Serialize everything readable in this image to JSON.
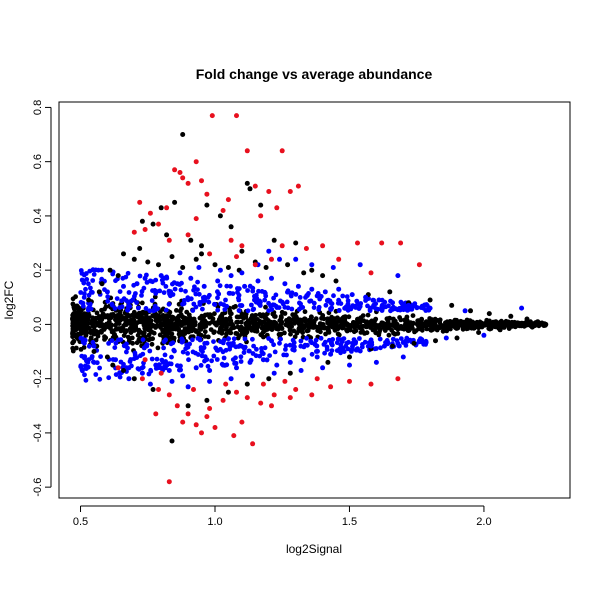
{
  "chart_data": {
    "type": "scatter",
    "title": "Fold change vs average abundance",
    "xlabel": "log2Signal",
    "ylabel": "log2FC",
    "xlim": [
      0.42,
      2.32
    ],
    "ylim": [
      -0.64,
      0.82
    ],
    "xticks": [
      0.5,
      1.0,
      1.5,
      2.0
    ],
    "xtick_labels": [
      "0.5",
      "1.0",
      "1.5",
      "2.0"
    ],
    "yticks": [
      -0.6,
      -0.4,
      -0.2,
      0.0,
      0.2,
      0.4,
      0.6,
      0.8
    ],
    "ytick_labels": [
      "-0.6",
      "-0.4",
      "-0.2",
      "0.0",
      "0.2",
      "0.4",
      "0.6",
      "0.8"
    ],
    "grid": false,
    "legend": "none",
    "colors": {
      "black": "#000000",
      "blue": "#0000ff",
      "red": "#e8101e"
    },
    "series": [
      {
        "color": "#000000",
        "points": [
          [
            0.88,
            0.7
          ],
          [
            0.8,
            0.43
          ],
          [
            0.85,
            0.45
          ],
          [
            0.97,
            0.44
          ],
          [
            1.02,
            0.4
          ],
          [
            1.12,
            0.52
          ],
          [
            1.13,
            0.5
          ],
          [
            1.17,
            0.44
          ],
          [
            0.73,
            0.38
          ],
          [
            0.77,
            0.37
          ],
          [
            0.82,
            0.33
          ],
          [
            0.91,
            0.31
          ],
          [
            0.95,
            0.29
          ],
          [
            1.06,
            0.36
          ],
          [
            1.22,
            0.31
          ],
          [
            1.3,
            0.3
          ],
          [
            0.66,
            0.26
          ],
          [
            0.7,
            0.24
          ],
          [
            0.75,
            0.23
          ],
          [
            0.79,
            0.22
          ],
          [
            0.84,
            0.25
          ],
          [
            0.88,
            0.21
          ],
          [
            0.93,
            0.24
          ],
          [
            1.0,
            0.22
          ],
          [
            1.05,
            0.21
          ],
          [
            1.09,
            0.2
          ],
          [
            1.15,
            0.23
          ],
          [
            1.19,
            0.21
          ],
          [
            1.27,
            0.22
          ],
          [
            1.36,
            0.2
          ],
          [
            0.61,
            0.2
          ],
          [
            0.64,
            0.18
          ],
          [
            1.57,
            0.11
          ],
          [
            1.65,
            0.12
          ],
          [
            1.72,
            0.08
          ],
          [
            1.8,
            0.09
          ],
          [
            1.88,
            0.07
          ],
          [
            1.95,
            0.05
          ],
          [
            2.02,
            0.04
          ],
          [
            2.1,
            0.03
          ],
          [
            2.16,
            0.02
          ],
          [
            2.2,
            0.01
          ],
          [
            2.23,
            0.0
          ],
          [
            2.18,
            -0.01
          ],
          [
            2.06,
            -0.02
          ],
          [
            1.98,
            -0.03
          ],
          [
            1.9,
            -0.05
          ],
          [
            1.82,
            -0.06
          ],
          [
            1.74,
            -0.07
          ],
          [
            1.66,
            -0.08
          ],
          [
            1.58,
            -0.09
          ],
          [
            0.84,
            -0.43
          ],
          [
            0.9,
            -0.3
          ],
          [
            0.97,
            -0.28
          ],
          [
            1.05,
            -0.25
          ],
          [
            0.77,
            -0.24
          ],
          [
            0.7,
            -0.2
          ],
          [
            0.66,
            -0.17
          ],
          [
            0.6,
            -0.12
          ],
          [
            0.56,
            -0.08
          ],
          [
            0.52,
            -0.04
          ],
          [
            0.49,
            0.0
          ],
          [
            0.5,
            0.05
          ],
          [
            0.53,
            0.09
          ],
          [
            0.57,
            0.12
          ],
          [
            0.48,
            -0.02
          ],
          [
            0.55,
            -0.1
          ],
          [
            0.62,
            -0.15
          ],
          [
            1.12,
            -0.22
          ],
          [
            1.2,
            -0.2
          ],
          [
            1.28,
            -0.18
          ],
          [
            1.42,
            -0.14
          ],
          [
            1.5,
            -0.12
          ],
          [
            1.45,
            0.16
          ],
          [
            1.4,
            0.18
          ],
          [
            1.33,
            0.19
          ],
          [
            0.72,
            0.28
          ],
          [
            0.95,
            0.26
          ],
          [
            1.1,
            0.27
          ],
          [
            0.58,
            0.15
          ]
        ]
      },
      {
        "color": "#0000ff",
        "points": [
          [
            0.53,
            0.06
          ],
          [
            0.55,
            -0.08
          ],
          [
            0.6,
            0.12
          ],
          [
            0.63,
            -0.13
          ],
          [
            0.66,
            0.14
          ],
          [
            0.68,
            -0.16
          ],
          [
            0.71,
            0.15
          ],
          [
            0.73,
            -0.18
          ],
          [
            0.76,
            0.16
          ],
          [
            0.78,
            -0.15
          ],
          [
            0.81,
            0.17
          ],
          [
            0.83,
            -0.17
          ],
          [
            0.86,
            0.15
          ],
          [
            0.88,
            -0.19
          ],
          [
            0.91,
            0.17
          ],
          [
            0.93,
            -0.16
          ],
          [
            0.96,
            0.14
          ],
          [
            0.98,
            -0.17
          ],
          [
            1.01,
            0.16
          ],
          [
            1.03,
            -0.15
          ],
          [
            1.06,
            0.18
          ],
          [
            1.08,
            -0.16
          ],
          [
            1.11,
            0.14
          ],
          [
            1.13,
            -0.14
          ],
          [
            1.16,
            0.16
          ],
          [
            1.18,
            -0.13
          ],
          [
            1.21,
            0.17
          ],
          [
            1.23,
            -0.15
          ],
          [
            1.26,
            0.15
          ],
          [
            1.28,
            -0.14
          ],
          [
            1.31,
            0.14
          ],
          [
            1.33,
            -0.13
          ],
          [
            1.36,
            0.13
          ],
          [
            1.38,
            -0.12
          ],
          [
            1.41,
            0.12
          ],
          [
            1.43,
            -0.11
          ],
          [
            1.46,
            0.13
          ],
          [
            1.48,
            -0.1
          ],
          [
            1.51,
            0.11
          ],
          [
            1.53,
            -0.09
          ],
          [
            1.56,
            0.1
          ],
          [
            1.58,
            -0.08
          ],
          [
            1.61,
            0.09
          ],
          [
            1.63,
            -0.08
          ],
          [
            1.66,
            0.08
          ],
          [
            1.68,
            -0.07
          ],
          [
            1.72,
            0.07
          ],
          [
            1.76,
            -0.06
          ],
          [
            1.8,
            0.06
          ],
          [
            1.86,
            -0.05
          ],
          [
            1.93,
            0.05
          ],
          [
            2.0,
            -0.04
          ],
          [
            2.14,
            0.06
          ],
          [
            1.54,
            0.22
          ],
          [
            1.44,
            0.21
          ],
          [
            1.68,
            0.18
          ],
          [
            1.36,
            0.22
          ],
          [
            1.3,
            0.24
          ],
          [
            1.2,
            0.27
          ],
          [
            1.24,
            0.24
          ],
          [
            1.16,
            0.22
          ],
          [
            1.1,
            0.19
          ],
          [
            1.02,
            0.2
          ],
          [
            0.94,
            0.21
          ],
          [
            0.87,
            0.19
          ],
          [
            0.8,
            0.18
          ],
          [
            0.74,
            0.17
          ],
          [
            0.68,
            -0.2
          ],
          [
            0.76,
            -0.22
          ],
          [
            0.84,
            -0.21
          ],
          [
            0.9,
            -0.23
          ],
          [
            0.98,
            -0.21
          ],
          [
            1.06,
            -0.2
          ],
          [
            1.14,
            -0.19
          ],
          [
            1.22,
            -0.18
          ],
          [
            1.32,
            -0.17
          ],
          [
            1.4,
            -0.16
          ],
          [
            1.5,
            -0.15
          ],
          [
            1.6,
            -0.14
          ],
          [
            1.7,
            -0.12
          ]
        ]
      },
      {
        "color": "#e8101e",
        "points": [
          [
            0.99,
            0.77
          ],
          [
            1.08,
            0.77
          ],
          [
            1.12,
            0.64
          ],
          [
            1.25,
            0.64
          ],
          [
            0.93,
            0.6
          ],
          [
            0.85,
            0.57
          ],
          [
            0.87,
            0.56
          ],
          [
            0.88,
            0.54
          ],
          [
            0.9,
            0.52
          ],
          [
            0.95,
            0.53
          ],
          [
            1.15,
            0.51
          ],
          [
            1.2,
            0.49
          ],
          [
            1.31,
            0.51
          ],
          [
            1.28,
            0.49
          ],
          [
            0.97,
            0.48
          ],
          [
            1.05,
            0.46
          ],
          [
            0.82,
            0.43
          ],
          [
            0.76,
            0.41
          ],
          [
            0.72,
            0.45
          ],
          [
            1.03,
            0.42
          ],
          [
            1.23,
            0.43
          ],
          [
            1.17,
            0.4
          ],
          [
            0.93,
            0.39
          ],
          [
            0.79,
            0.37
          ],
          [
            0.74,
            0.35
          ],
          [
            0.9,
            0.33
          ],
          [
            1.06,
            0.31
          ],
          [
            1.1,
            0.29
          ],
          [
            1.25,
            0.29
          ],
          [
            1.34,
            0.28
          ],
          [
            1.4,
            0.29
          ],
          [
            1.46,
            0.24
          ],
          [
            1.53,
            0.3
          ],
          [
            1.62,
            0.3
          ],
          [
            1.69,
            0.3
          ],
          [
            1.76,
            0.22
          ],
          [
            1.58,
            0.19
          ],
          [
            0.7,
            0.34
          ],
          [
            0.83,
            0.31
          ],
          [
            0.98,
            0.26
          ],
          [
            1.08,
            0.25
          ],
          [
            1.15,
            0.22
          ],
          [
            1.21,
            0.24
          ],
          [
            0.64,
            -0.16
          ],
          [
            0.73,
            -0.2
          ],
          [
            0.79,
            -0.24
          ],
          [
            0.83,
            -0.26
          ],
          [
            0.86,
            -0.3
          ],
          [
            0.9,
            -0.33
          ],
          [
            0.93,
            -0.37
          ],
          [
            0.98,
            -0.31
          ],
          [
            1.03,
            -0.28
          ],
          [
            1.08,
            -0.25
          ],
          [
            1.12,
            -0.27
          ],
          [
            1.17,
            -0.29
          ],
          [
            1.22,
            -0.26
          ],
          [
            1.3,
            -0.24
          ],
          [
            1.36,
            -0.26
          ],
          [
            1.43,
            -0.23
          ],
          [
            1.5,
            -0.21
          ],
          [
            1.58,
            -0.22
          ],
          [
            1.68,
            -0.2
          ],
          [
            0.78,
            -0.33
          ],
          [
            0.88,
            -0.36
          ],
          [
            0.95,
            -0.4
          ],
          [
            1.0,
            -0.38
          ],
          [
            1.07,
            -0.41
          ],
          [
            1.14,
            -0.44
          ],
          [
            1.21,
            -0.3
          ],
          [
            1.28,
            -0.27
          ],
          [
            0.97,
            -0.34
          ],
          [
            1.04,
            -0.22
          ],
          [
            0.83,
            -0.58
          ],
          [
            0.74,
            -0.13
          ],
          [
            0.8,
            -0.18
          ],
          [
            1.18,
            -0.22
          ],
          [
            1.26,
            -0.21
          ],
          [
            1.38,
            -0.2
          ],
          [
            0.92,
            -0.24
          ],
          [
            1.1,
            -0.36
          ]
        ]
      }
    ]
  }
}
